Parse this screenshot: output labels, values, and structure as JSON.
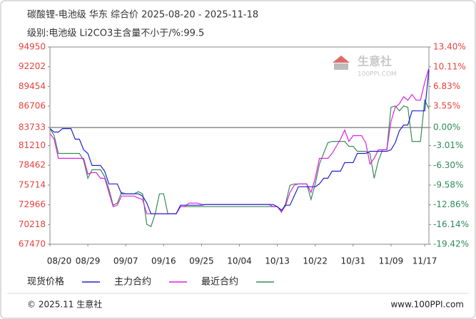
{
  "chart_data": {
    "type": "line",
    "title": "碳酸锂-电池级 华东 综合价 2025-08-20 - 2025-11-18",
    "subtitle": "级别:电池级 Li2CO3主含量不小于/%:99.5",
    "watermark": "生意社",
    "watermark_sub": "100PPI.COM",
    "footer_left": "© 2025.11 生意社",
    "footer_right": "www.100PPI.com",
    "categories": [
      "08/20",
      null,
      null,
      null,
      null,
      null,
      null,
      null,
      null,
      "08/29",
      null,
      null,
      null,
      null,
      null,
      null,
      null,
      null,
      "09/07",
      null,
      null,
      null,
      null,
      null,
      null,
      null,
      null,
      "09/16",
      null,
      null,
      null,
      null,
      null,
      null,
      null,
      null,
      "09/25",
      null,
      null,
      null,
      null,
      null,
      null,
      null,
      null,
      "10/04",
      null,
      null,
      null,
      null,
      null,
      null,
      null,
      null,
      "10/13",
      null,
      null,
      null,
      null,
      null,
      null,
      null,
      null,
      "10/22",
      null,
      null,
      null,
      null,
      null,
      null,
      null,
      null,
      "10/31",
      null,
      null,
      null,
      null,
      null,
      null,
      null,
      null,
      "11/09",
      null,
      null,
      null,
      null,
      null,
      null,
      null,
      "11/17",
      null
    ],
    "series": [
      {
        "name": "现货价格",
        "color": "#2222cc",
        "values": [
          83580,
          83090,
          83090,
          83580,
          83580,
          83580,
          82100,
          82100,
          80620,
          80120,
          78440,
          78440,
          78440,
          77650,
          75870,
          75870,
          75870,
          74490,
          74490,
          74490,
          74490,
          74490,
          74190,
          73200,
          71720,
          71720,
          71720,
          71720,
          71720,
          71720,
          71720,
          72910,
          72910,
          72910,
          72910,
          72910,
          72910,
          73010,
          73010,
          73010,
          73010,
          73010,
          73010,
          73010,
          73010,
          73010,
          73010,
          73010,
          73010,
          73010,
          73010,
          73010,
          73010,
          73010,
          72710,
          72220,
          72910,
          72910,
          74190,
          75480,
          75480,
          75480,
          75480,
          75480,
          75870,
          76660,
          76660,
          77650,
          77650,
          77650,
          78840,
          78840,
          78840,
          80120,
          80120,
          80120,
          80420,
          80420,
          80420,
          80420,
          80420,
          80620,
          81610,
          83290,
          84080,
          84080,
          86050,
          86050,
          86050,
          86050,
          91790
        ]
      },
      {
        "name": "主力合约",
        "color": "#e020e0",
        "values": [
          82890,
          82100,
          79430,
          79430,
          79430,
          79430,
          79430,
          79430,
          79430,
          77260,
          77450,
          77450,
          76660,
          76660,
          74690,
          72710,
          72910,
          74190,
          74190,
          74190,
          74190,
          73900,
          73700,
          71720,
          71720,
          71720,
          71720,
          71720,
          71720,
          71720,
          71720,
          72710,
          72710,
          73200,
          73200,
          73200,
          73010,
          73010,
          73010,
          73010,
          73010,
          73010,
          73010,
          73010,
          73010,
          73010,
          73010,
          73010,
          73010,
          73010,
          73010,
          73010,
          73010,
          72710,
          72710,
          72020,
          72910,
          74690,
          75680,
          75870,
          75870,
          75870,
          74690,
          76660,
          79430,
          79430,
          79430,
          80120,
          81110,
          82100,
          83380,
          81800,
          82600,
          82600,
          82600,
          81610,
          78640,
          79430,
          80620,
          80620,
          80620,
          84570,
          86550,
          87040,
          88030,
          87540,
          88330,
          87540,
          87540,
          90010,
          91990
        ]
      },
      {
        "name": "最近合约",
        "color": "#3a8a5a",
        "values": [
          83580,
          82600,
          80120,
          80120,
          80120,
          80120,
          80120,
          80120,
          79130,
          76660,
          77850,
          77850,
          77850,
          76860,
          75180,
          72910,
          73200,
          74690,
          74490,
          74490,
          74490,
          74790,
          74490,
          70240,
          69940,
          71720,
          74490,
          74490,
          71720,
          71720,
          71720,
          72710,
          72710,
          72710,
          72710,
          72710,
          72710,
          72710,
          72710,
          72710,
          72710,
          72710,
          72710,
          72710,
          72710,
          72710,
          72710,
          72710,
          72710,
          72710,
          72710,
          72710,
          72710,
          72710,
          72710,
          71920,
          73200,
          75680,
          75870,
          75870,
          75870,
          75870,
          73700,
          75870,
          78640,
          80120,
          81610,
          81800,
          81800,
          81800,
          81800,
          81110,
          81110,
          80420,
          80420,
          80420,
          80120,
          76660,
          79130,
          80620,
          80620,
          86550,
          86750,
          86050,
          86750,
          86550,
          81800,
          81800,
          81800,
          87540,
          86350
        ]
      }
    ],
    "ylim": [
      67470,
      94950
    ],
    "yticks": [
      67470,
      70218,
      72966,
      75714,
      78462,
      81210,
      83733,
      86706,
      89454,
      92202,
      94950
    ],
    "y2lim": [
      -19.42,
      13.4
    ],
    "y2ticks": [
      {
        "value": -19.42,
        "label": "-19.42%"
      },
      {
        "value": -16.14,
        "label": "-16.14%"
      },
      {
        "value": -12.86,
        "label": "-12.86%"
      },
      {
        "value": -9.58,
        "label": "-9.58%"
      },
      {
        "value": -6.3,
        "label": "-6.30%"
      },
      {
        "value": -3.01,
        "label": "-3.01%"
      },
      {
        "value": 0,
        "label": "0.00%"
      },
      {
        "value": 3.55,
        "label": "3.55%"
      },
      {
        "value": 6.83,
        "label": "6.83%"
      },
      {
        "value": 10.11,
        "label": "10.11%"
      },
      {
        "value": 13.4,
        "label": "13.40%"
      }
    ],
    "grid": false
  }
}
